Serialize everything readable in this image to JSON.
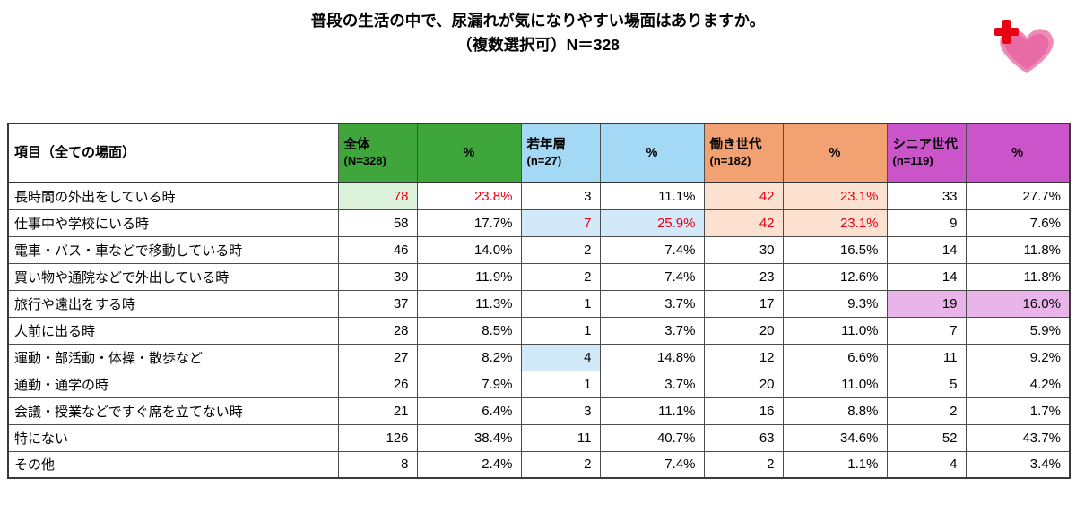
{
  "title": {
    "line1": "普段の生活の中で、尿漏れが気になりやすい場面はありますか。",
    "line2": "（複数選択可）N＝328"
  },
  "logo": {
    "name": "brand-heart-cross-logo",
    "pink": "#e87bb0",
    "red": "#e60012"
  },
  "colors": {
    "header_green": "#3ea63b",
    "header_blue": "#a3d9f5",
    "header_orange": "#f2a272",
    "header_purple": "#cb54cb",
    "highlight_green": "#dcf2da",
    "highlight_blue": "#d2e9f9",
    "highlight_orange": "#fce1d1",
    "highlight_purple": "#e9b4e9",
    "red_text": "#e60012"
  },
  "table": {
    "corner_header": "項目（全ての場面）",
    "columns": [
      {
        "label": "全体",
        "sub": "(N=328)",
        "theme": "green",
        "kind": "grp"
      },
      {
        "label": "%",
        "theme": "green",
        "kind": "pct"
      },
      {
        "label": "若年層",
        "sub": "(n=27)",
        "theme": "blue",
        "kind": "grp"
      },
      {
        "label": "%",
        "theme": "blue",
        "kind": "pct"
      },
      {
        "label": "働き世代",
        "sub": "(n=182)",
        "theme": "orange",
        "kind": "grp"
      },
      {
        "label": "%",
        "theme": "orange",
        "kind": "pct"
      },
      {
        "label": "シニア世代",
        "sub": "(n=119)",
        "theme": "purple",
        "kind": "grp"
      },
      {
        "label": "%",
        "theme": "purple",
        "kind": "pct"
      }
    ],
    "rows": [
      {
        "label": "長時間の外出をしている時",
        "cells": [
          {
            "v": "78",
            "hl": "green",
            "red": true
          },
          {
            "v": "23.8%",
            "red": true
          },
          {
            "v": "3"
          },
          {
            "v": "11.1%"
          },
          {
            "v": "42",
            "hl": "orange",
            "red": true
          },
          {
            "v": "23.1%",
            "hl": "orange",
            "red": true
          },
          {
            "v": "33"
          },
          {
            "v": "27.7%"
          }
        ]
      },
      {
        "label": "仕事中や学校にいる時",
        "cells": [
          {
            "v": "58"
          },
          {
            "v": "17.7%"
          },
          {
            "v": "7",
            "hl": "blue",
            "red": true
          },
          {
            "v": "25.9%",
            "hl": "blue",
            "red": true
          },
          {
            "v": "42",
            "hl": "orange",
            "red": true
          },
          {
            "v": "23.1%",
            "hl": "orange",
            "red": true
          },
          {
            "v": "9"
          },
          {
            "v": "7.6%"
          }
        ]
      },
      {
        "label": "電車・バス・車などで移動している時",
        "cells": [
          {
            "v": "46"
          },
          {
            "v": "14.0%"
          },
          {
            "v": "2"
          },
          {
            "v": "7.4%"
          },
          {
            "v": "30"
          },
          {
            "v": "16.5%"
          },
          {
            "v": "14"
          },
          {
            "v": "11.8%"
          }
        ]
      },
      {
        "label": "買い物や通院などで外出している時",
        "cells": [
          {
            "v": "39"
          },
          {
            "v": "11.9%"
          },
          {
            "v": "2"
          },
          {
            "v": "7.4%"
          },
          {
            "v": "23"
          },
          {
            "v": "12.6%"
          },
          {
            "v": "14"
          },
          {
            "v": "11.8%"
          }
        ]
      },
      {
        "label": "旅行や遠出をする時",
        "cells": [
          {
            "v": "37"
          },
          {
            "v": "11.3%"
          },
          {
            "v": "1"
          },
          {
            "v": "3.7%"
          },
          {
            "v": "17"
          },
          {
            "v": "9.3%"
          },
          {
            "v": "19",
            "hl": "purple"
          },
          {
            "v": "16.0%",
            "hl": "purple"
          }
        ]
      },
      {
        "label": "人前に出る時",
        "cells": [
          {
            "v": "28"
          },
          {
            "v": "8.5%"
          },
          {
            "v": "1"
          },
          {
            "v": "3.7%"
          },
          {
            "v": "20"
          },
          {
            "v": "11.0%"
          },
          {
            "v": "7"
          },
          {
            "v": "5.9%"
          }
        ]
      },
      {
        "label": "運動・部活動・体操・散歩など",
        "cells": [
          {
            "v": "27"
          },
          {
            "v": "8.2%"
          },
          {
            "v": "4",
            "hl": "blue"
          },
          {
            "v": "14.8%"
          },
          {
            "v": "12"
          },
          {
            "v": "6.6%"
          },
          {
            "v": "11"
          },
          {
            "v": "9.2%"
          }
        ]
      },
      {
        "label": "通勤・通学の時",
        "cells": [
          {
            "v": "26"
          },
          {
            "v": "7.9%"
          },
          {
            "v": "1"
          },
          {
            "v": "3.7%"
          },
          {
            "v": "20"
          },
          {
            "v": "11.0%"
          },
          {
            "v": "5"
          },
          {
            "v": "4.2%"
          }
        ]
      },
      {
        "label": "会議・授業などですぐ席を立てない時",
        "cells": [
          {
            "v": "21"
          },
          {
            "v": "6.4%"
          },
          {
            "v": "3"
          },
          {
            "v": "11.1%"
          },
          {
            "v": "16"
          },
          {
            "v": "8.8%"
          },
          {
            "v": "2"
          },
          {
            "v": "1.7%"
          }
        ]
      },
      {
        "label": "特にない",
        "cells": [
          {
            "v": "126"
          },
          {
            "v": "38.4%"
          },
          {
            "v": "11"
          },
          {
            "v": "40.7%"
          },
          {
            "v": "63"
          },
          {
            "v": "34.6%"
          },
          {
            "v": "52"
          },
          {
            "v": "43.7%"
          }
        ]
      },
      {
        "label": "その他",
        "cells": [
          {
            "v": "8"
          },
          {
            "v": "2.4%"
          },
          {
            "v": "2"
          },
          {
            "v": "7.4%"
          },
          {
            "v": "2"
          },
          {
            "v": "1.1%"
          },
          {
            "v": "4"
          },
          {
            "v": "3.4%"
          }
        ]
      }
    ]
  },
  "chart_data": {
    "type": "table",
    "title": "普段の生活の中で、尿漏れが気になりやすい場面はありますか。（複数選択可）N＝328",
    "categories": [
      "長時間の外出をしている時",
      "仕事中や学校にいる時",
      "電車・バス・車などで移動している時",
      "買い物や通院などで外出している時",
      "旅行や遠出をする時",
      "人前に出る時",
      "運動・部活動・体操・散歩など",
      "通勤・通学の時",
      "会議・授業などですぐ席を立てない時",
      "特にない",
      "その他"
    ],
    "series": [
      {
        "name": "全体 (N=328)",
        "values": [
          78,
          58,
          46,
          39,
          37,
          28,
          27,
          26,
          21,
          126,
          8
        ]
      },
      {
        "name": "全体 %",
        "values": [
          23.8,
          17.7,
          14.0,
          11.9,
          11.3,
          8.5,
          8.2,
          7.9,
          6.4,
          38.4,
          2.4
        ]
      },
      {
        "name": "若年層 (n=27)",
        "values": [
          3,
          7,
          2,
          2,
          1,
          1,
          4,
          1,
          3,
          11,
          2
        ]
      },
      {
        "name": "若年層 %",
        "values": [
          11.1,
          25.9,
          7.4,
          7.4,
          3.7,
          3.7,
          14.8,
          3.7,
          11.1,
          40.7,
          7.4
        ]
      },
      {
        "name": "働き世代 (n=182)",
        "values": [
          42,
          42,
          30,
          23,
          17,
          20,
          12,
          20,
          16,
          63,
          2
        ]
      },
      {
        "name": "働き世代 %",
        "values": [
          23.1,
          23.1,
          16.5,
          12.6,
          9.3,
          11.0,
          6.6,
          11.0,
          8.8,
          34.6,
          1.1
        ]
      },
      {
        "name": "シニア世代 (n=119)",
        "values": [
          33,
          9,
          14,
          14,
          19,
          7,
          11,
          5,
          2,
          52,
          4
        ]
      },
      {
        "name": "シニア世代 %",
        "values": [
          27.7,
          7.6,
          11.8,
          11.8,
          16.0,
          5.9,
          9.2,
          4.2,
          1.7,
          43.7,
          3.4
        ]
      }
    ]
  }
}
